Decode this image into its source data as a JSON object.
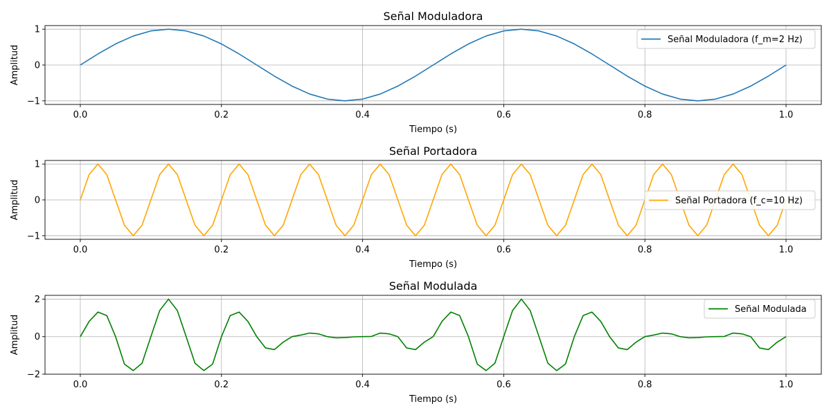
{
  "chart_data": [
    {
      "type": "line",
      "title": "Señal Moduladora",
      "xlabel": "Tiempo (s)",
      "ylabel": "Amplitud",
      "xlim": [
        -0.05,
        1.05
      ],
      "ylim": [
        -1.1,
        1.1
      ],
      "xticks": [
        0.0,
        0.2,
        0.4,
        0.6,
        0.8,
        1.0
      ],
      "xtick_labels": [
        "0.0",
        "0.2",
        "0.4",
        "0.6",
        "0.8",
        "1.0"
      ],
      "yticks": [
        -1,
        0,
        1
      ],
      "ytick_labels": [
        "−1",
        "0",
        "1"
      ],
      "grid": true,
      "legend_position": "top-right",
      "series": [
        {
          "name": "Señal Moduladora (f_m=2 Hz)",
          "color": "#1f77b4",
          "x": [
            0.0,
            0.025,
            0.05,
            0.075,
            0.1,
            0.125,
            0.15,
            0.175,
            0.2,
            0.225,
            0.25,
            0.275,
            0.3,
            0.325,
            0.35,
            0.375,
            0.4,
            0.425,
            0.45,
            0.475,
            0.5,
            0.525,
            0.55,
            0.575,
            0.6,
            0.625,
            0.65,
            0.675,
            0.7,
            0.725,
            0.75,
            0.775,
            0.8,
            0.825,
            0.85,
            0.875,
            0.9,
            0.925,
            0.95,
            0.975,
            1.0
          ],
          "y": [
            0.0,
            0.309,
            0.588,
            0.809,
            0.951,
            1.0,
            0.951,
            0.809,
            0.588,
            0.309,
            0.0,
            -0.309,
            -0.588,
            -0.809,
            -0.951,
            -1.0,
            -0.951,
            -0.809,
            -0.588,
            -0.309,
            0.0,
            0.309,
            0.588,
            0.809,
            0.951,
            1.0,
            0.951,
            0.809,
            0.588,
            0.309,
            0.0,
            -0.309,
            -0.588,
            -0.809,
            -0.951,
            -1.0,
            -0.951,
            -0.809,
            -0.588,
            -0.309,
            0.0
          ]
        }
      ]
    },
    {
      "type": "line",
      "title": "Señal Portadora",
      "xlabel": "Tiempo (s)",
      "ylabel": "Amplitud",
      "xlim": [
        -0.05,
        1.05
      ],
      "ylim": [
        -1.1,
        1.1
      ],
      "xticks": [
        0.0,
        0.2,
        0.4,
        0.6,
        0.8,
        1.0
      ],
      "xtick_labels": [
        "0.0",
        "0.2",
        "0.4",
        "0.6",
        "0.8",
        "1.0"
      ],
      "yticks": [
        -1,
        0,
        1
      ],
      "ytick_labels": [
        "−1",
        "0",
        "1"
      ],
      "grid": true,
      "legend_position": "center-right",
      "series": [
        {
          "name": "Señal Portadora (f_c=10 Hz)",
          "color": "#ffa500",
          "x": [
            0.0,
            0.0125,
            0.025,
            0.0375,
            0.05,
            0.0625,
            0.075,
            0.0875,
            0.1,
            0.1125,
            0.125,
            0.1375,
            0.15,
            0.1625,
            0.175,
            0.1875,
            0.2,
            0.2125,
            0.225,
            0.2375,
            0.25,
            0.2625,
            0.275,
            0.2875,
            0.3,
            0.3125,
            0.325,
            0.3375,
            0.35,
            0.3625,
            0.375,
            0.3875,
            0.4,
            0.4125,
            0.425,
            0.4375,
            0.45,
            0.4625,
            0.475,
            0.4875,
            0.5,
            0.5125,
            0.525,
            0.5375,
            0.55,
            0.5625,
            0.575,
            0.5875,
            0.6,
            0.6125,
            0.625,
            0.6375,
            0.65,
            0.6625,
            0.675,
            0.6875,
            0.7,
            0.7125,
            0.725,
            0.7375,
            0.75,
            0.7625,
            0.775,
            0.7875,
            0.8,
            0.8125,
            0.825,
            0.8375,
            0.85,
            0.8625,
            0.875,
            0.8875,
            0.9,
            0.9125,
            0.925,
            0.9375,
            0.95,
            0.9625,
            0.975,
            0.9875,
            1.0
          ],
          "y": [
            0.0,
            0.707,
            1.0,
            0.707,
            0.0,
            -0.707,
            -1.0,
            -0.707,
            0.0,
            0.707,
            1.0,
            0.707,
            0.0,
            -0.707,
            -1.0,
            -0.707,
            0.0,
            0.707,
            1.0,
            0.707,
            0.0,
            -0.707,
            -1.0,
            -0.707,
            0.0,
            0.707,
            1.0,
            0.707,
            0.0,
            -0.707,
            -1.0,
            -0.707,
            0.0,
            0.707,
            1.0,
            0.707,
            0.0,
            -0.707,
            -1.0,
            -0.707,
            0.0,
            0.707,
            1.0,
            0.707,
            0.0,
            -0.707,
            -1.0,
            -0.707,
            0.0,
            0.707,
            1.0,
            0.707,
            0.0,
            -0.707,
            -1.0,
            -0.707,
            0.0,
            0.707,
            1.0,
            0.707,
            0.0,
            -0.707,
            -1.0,
            -0.707,
            0.0,
            0.707,
            1.0,
            0.707,
            0.0,
            -0.707,
            -1.0,
            -0.707,
            0.0,
            0.707,
            1.0,
            0.707,
            0.0,
            -0.707,
            -1.0,
            -0.707,
            0.0
          ]
        }
      ]
    },
    {
      "type": "line",
      "title": "Señal Modulada",
      "xlabel": "Tiempo (s)",
      "ylabel": "Amplitud",
      "xlim": [
        -0.05,
        1.05
      ],
      "ylim": [
        -2.0,
        2.2
      ],
      "xticks": [
        0.0,
        0.2,
        0.4,
        0.6,
        0.8,
        1.0
      ],
      "xtick_labels": [
        "0.0",
        "0.2",
        "0.4",
        "0.6",
        "0.8",
        "1.0"
      ],
      "yticks": [
        -2,
        0,
        2
      ],
      "ytick_labels": [
        "−2",
        "0",
        "2"
      ],
      "grid": true,
      "legend_position": "top-right",
      "series": [
        {
          "name": "Señal Modulada",
          "color": "#008000",
          "x": [
            0.0,
            0.0125,
            0.025,
            0.0375,
            0.05,
            0.0625,
            0.075,
            0.0875,
            0.1,
            0.1125,
            0.125,
            0.1375,
            0.15,
            0.1625,
            0.175,
            0.1875,
            0.2,
            0.2125,
            0.225,
            0.2375,
            0.25,
            0.2625,
            0.275,
            0.2875,
            0.3,
            0.3125,
            0.325,
            0.3375,
            0.35,
            0.3625,
            0.375,
            0.3875,
            0.4,
            0.4125,
            0.425,
            0.4375,
            0.45,
            0.4625,
            0.475,
            0.4875,
            0.5,
            0.5125,
            0.525,
            0.5375,
            0.55,
            0.5625,
            0.575,
            0.5875,
            0.6,
            0.6125,
            0.625,
            0.6375,
            0.65,
            0.6625,
            0.675,
            0.6875,
            0.7,
            0.7125,
            0.725,
            0.7375,
            0.75,
            0.7625,
            0.775,
            0.7875,
            0.8,
            0.8125,
            0.825,
            0.8375,
            0.85,
            0.8625,
            0.875,
            0.8875,
            0.9,
            0.9125,
            0.925,
            0.9375,
            0.95,
            0.9625,
            0.975,
            0.9875,
            1.0
          ],
          "y": [
            0.0,
            0.812,
            1.309,
            1.124,
            0.0,
            -1.461,
            -1.809,
            -1.415,
            0.0,
            1.391,
            2.0,
            1.391,
            0.0,
            -1.415,
            -1.809,
            -1.461,
            0.0,
            1.124,
            1.309,
            0.812,
            0.0,
            -0.603,
            -0.691,
            -0.293,
            0.0,
            0.084,
            0.191,
            0.149,
            0.0,
            -0.062,
            -0.049,
            -0.011,
            0.0,
            0.011,
            0.191,
            0.149,
            0.0,
            -0.603,
            -0.691,
            -0.293,
            0.0,
            0.812,
            1.309,
            1.124,
            0.0,
            -1.461,
            -1.809,
            -1.415,
            0.0,
            1.391,
            2.0,
            1.391,
            0.0,
            -1.415,
            -1.809,
            -1.461,
            0.0,
            1.124,
            1.309,
            0.812,
            0.0,
            -0.603,
            -0.691,
            -0.293,
            0.0,
            0.084,
            0.191,
            0.149,
            0.0,
            -0.062,
            -0.049,
            -0.011,
            0.0,
            0.011,
            0.191,
            0.149,
            0.0,
            -0.603,
            -0.691,
            -0.293,
            0.0
          ]
        }
      ]
    }
  ]
}
